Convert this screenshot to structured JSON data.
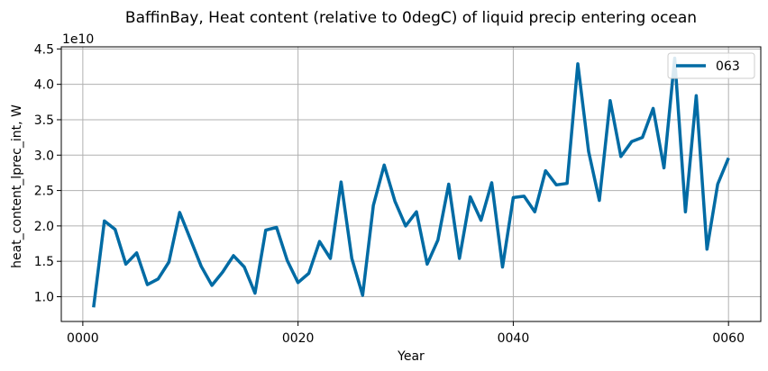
{
  "chart_data": {
    "type": "line",
    "title": "BaffinBay, Heat content (relative to 0degC) of liquid precip entering ocean",
    "xlabel": "Year",
    "ylabel": "heat_content_lprec_int, W",
    "y_offset_text": "1e10",
    "xlim": [
      -2,
      63
    ],
    "ylim": [
      0.65,
      4.53
    ],
    "x_ticks": [
      0,
      20,
      40,
      60
    ],
    "x_tick_labels": [
      "0000",
      "0020",
      "0040",
      "0060"
    ],
    "y_ticks": [
      1.0,
      1.5,
      2.0,
      2.5,
      3.0,
      3.5,
      4.0,
      4.5
    ],
    "y_tick_labels": [
      "1.0",
      "1.5",
      "2.0",
      "2.5",
      "3.0",
      "3.5",
      "4.0",
      "4.5"
    ],
    "grid": true,
    "legend_position": "top-right",
    "series": [
      {
        "name": "063",
        "color": "#006ba4",
        "x": [
          1,
          2,
          3,
          4,
          5,
          6,
          7,
          8,
          9,
          10,
          11,
          12,
          13,
          14,
          15,
          16,
          17,
          18,
          19,
          20,
          21,
          22,
          23,
          24,
          25,
          26,
          27,
          28,
          29,
          30,
          31,
          32,
          33,
          34,
          35,
          36,
          37,
          38,
          39,
          40,
          41,
          42,
          43,
          44,
          45,
          46,
          47,
          48,
          49,
          50,
          51,
          52,
          53,
          54,
          55,
          56,
          57,
          58,
          59,
          60
        ],
        "values": [
          0.85,
          2.07,
          1.95,
          1.46,
          1.62,
          1.17,
          1.25,
          1.49,
          2.19,
          1.81,
          1.43,
          1.16,
          1.35,
          1.58,
          1.42,
          1.05,
          1.94,
          1.98,
          1.51,
          1.2,
          1.33,
          1.78,
          1.54,
          2.62,
          1.54,
          1.02,
          2.29,
          2.86,
          2.35,
          2.0,
          2.2,
          1.46,
          1.8,
          2.59,
          1.54,
          2.41,
          2.08,
          2.61,
          1.42,
          2.4,
          2.42,
          2.2,
          2.78,
          2.58,
          2.6,
          4.29,
          3.05,
          2.36,
          3.77,
          2.98,
          3.19,
          3.25,
          3.66,
          2.82,
          4.37,
          2.2,
          3.84,
          1.67,
          2.59,
          2.96
        ]
      }
    ]
  }
}
